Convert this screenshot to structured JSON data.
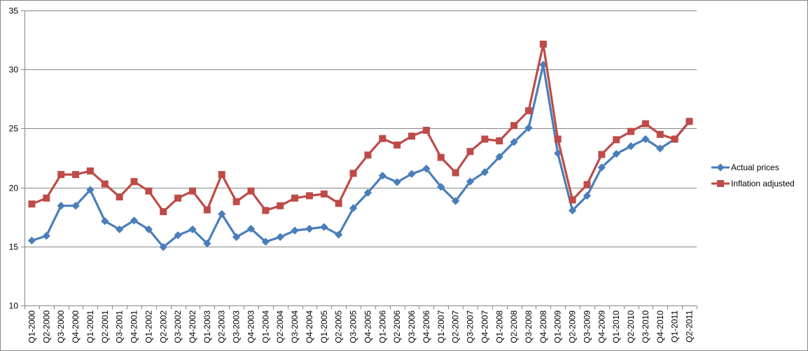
{
  "chart_data": {
    "type": "line",
    "title": "",
    "xlabel": "",
    "ylabel": "",
    "ylim": [
      10,
      35
    ],
    "yticks": [
      10,
      15,
      20,
      25,
      30,
      35
    ],
    "grid": {
      "horizontal": true,
      "vertical": false
    },
    "legend_position": "right",
    "categories": [
      "Q1-2000",
      "Q2-2000",
      "Q3-2000",
      "Q4-2000",
      "Q1-2001",
      "Q2-2001",
      "Q3-2001",
      "Q4-2001",
      "Q1-2002",
      "Q2-2002",
      "Q3-2002",
      "Q4-2002",
      "Q1-2003",
      "Q2-2003",
      "Q3-2003",
      "Q4-2003",
      "Q1-2004",
      "Q2-2004",
      "Q3-2004",
      "Q4-2004",
      "Q1-2005",
      "Q2-2005",
      "Q3-2005",
      "Q4-2005",
      "Q1-2006",
      "Q2-2006",
      "Q3-2006",
      "Q4-2006",
      "Q1-2007",
      "Q2-2007",
      "Q3-2007",
      "Q4-2007",
      "Q1-2008",
      "Q2-2008",
      "Q3-2008",
      "Q4-2008",
      "Q1-2009",
      "Q2-2009",
      "Q3-2009",
      "Q4-2009",
      "Q1-2010",
      "Q2-2010",
      "Q3-2010",
      "Q4-2010",
      "Q1-2011",
      "Q2-2011"
    ],
    "series": [
      {
        "name": "Actual prices",
        "color": "#4a7ebb",
        "marker": "diamond",
        "values": [
          15.5,
          15.9,
          18.45,
          18.45,
          19.8,
          17.15,
          16.45,
          17.2,
          16.45,
          14.95,
          15.95,
          16.45,
          15.25,
          17.75,
          15.8,
          16.5,
          15.4,
          15.8,
          16.35,
          16.5,
          16.65,
          16.0,
          18.25,
          19.55,
          21.0,
          20.45,
          21.15,
          21.6,
          20.05,
          18.85,
          20.5,
          21.3,
          22.6,
          23.85,
          25.05,
          30.4,
          22.9,
          18.05,
          19.3,
          21.7,
          22.85,
          23.5,
          24.1,
          23.3,
          24.1,
          25.6
        ]
      },
      {
        "name": "Inflation adjusted",
        "color": "#be4b48",
        "marker": "square",
        "values": [
          18.6,
          19.1,
          21.1,
          21.1,
          21.4,
          20.3,
          19.2,
          20.5,
          19.7,
          17.95,
          19.1,
          19.7,
          18.1,
          21.1,
          18.8,
          19.7,
          18.05,
          18.45,
          19.1,
          19.3,
          19.45,
          18.65,
          21.2,
          22.75,
          24.15,
          23.6,
          24.35,
          24.85,
          22.55,
          21.25,
          23.05,
          24.1,
          23.95,
          25.25,
          26.5,
          32.15,
          24.1,
          18.95,
          20.25,
          22.8,
          24.05,
          24.75,
          25.4,
          24.5,
          24.1,
          25.6
        ]
      }
    ]
  },
  "legend": {
    "items": [
      {
        "label": "Actual prices"
      },
      {
        "label": "Inflation adjusted"
      }
    ]
  }
}
